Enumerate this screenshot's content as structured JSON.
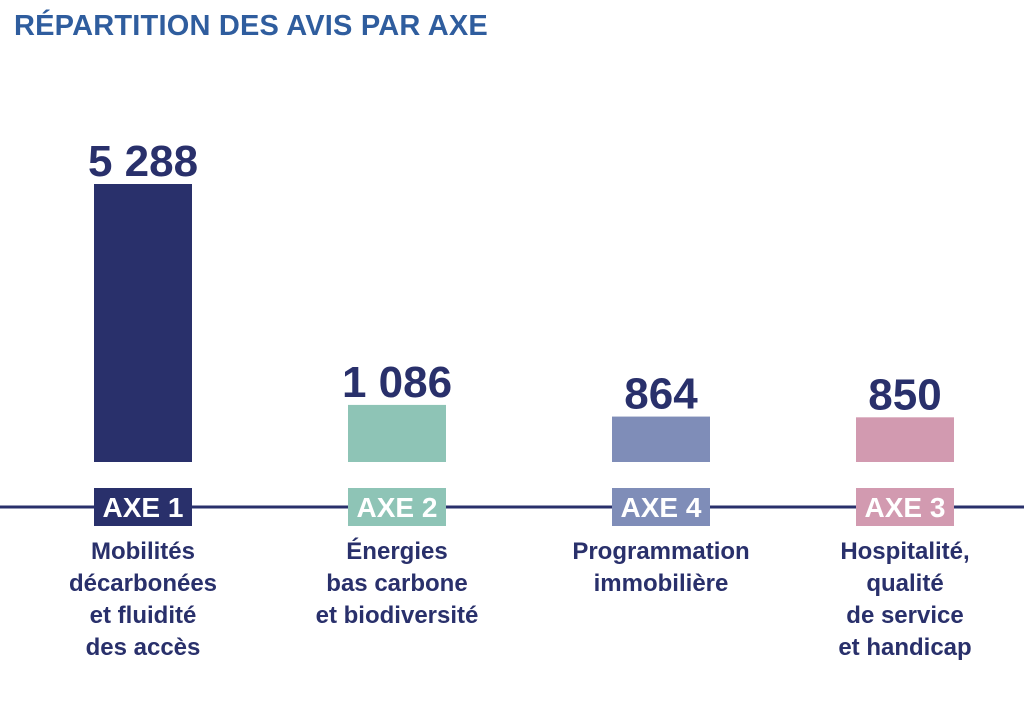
{
  "title": "RÉPARTITION DES AVIS PAR AXE",
  "colors": {
    "title": "#2f5d9e",
    "text": "#29306b",
    "baseline": "#29306b"
  },
  "chart_data": {
    "type": "bar",
    "title": "RÉPARTITION DES AVIS PAR AXE",
    "categories": [
      "AXE 1",
      "AXE 2",
      "AXE 4",
      "AXE 3"
    ],
    "values": [
      5288,
      1086,
      864,
      850
    ],
    "value_labels": [
      "5 288",
      "1 086",
      "864",
      "850"
    ],
    "descriptions": [
      [
        "Mobilités",
        "décarbonées",
        "et fluidité",
        "des accès"
      ],
      [
        "Énergies",
        "bas carbone",
        "et biodiversité"
      ],
      [
        "Programmation",
        "immobilière"
      ],
      [
        "Hospitalité,",
        "qualité",
        "de service",
        "et handicap"
      ]
    ],
    "colors": [
      "#29306b",
      "#8ec4b6",
      "#7f8db8",
      "#d29ab0"
    ],
    "grid": false,
    "legend": "none"
  }
}
